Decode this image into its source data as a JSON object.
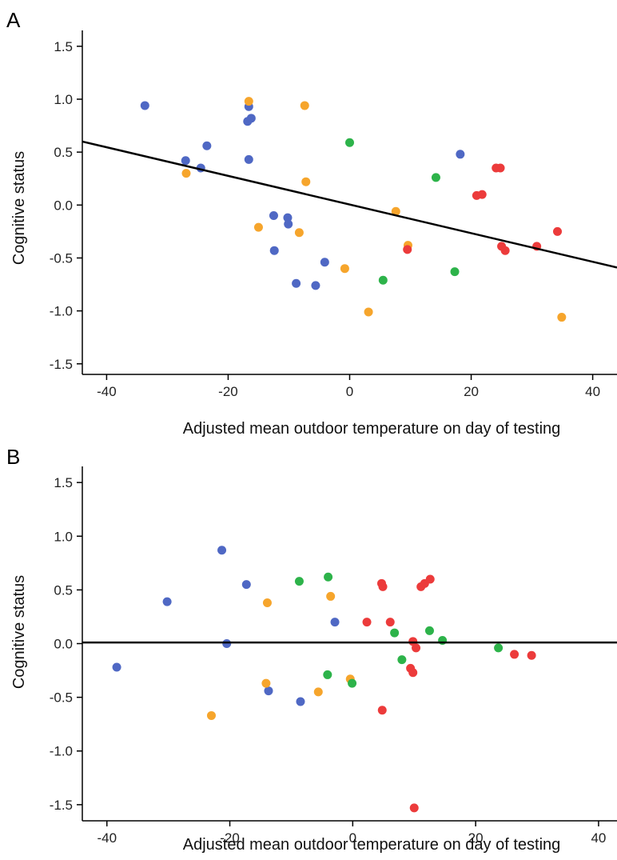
{
  "colors": {
    "blue": "#4f68c4",
    "orange": "#f6a52c",
    "green": "#2db34a",
    "red": "#ec3b3b"
  },
  "chart_data": [
    {
      "panel_label": "A",
      "type": "scatter",
      "title": "",
      "xlabel": "Adjusted mean outdoor temperature on day of testing",
      "ylabel": "Cognitive status",
      "xlim": [
        -44,
        44
      ],
      "ylim": [
        -1.6,
        1.65
      ],
      "xticks": [
        -40,
        -20,
        0,
        20,
        40
      ],
      "xtick_labels": [
        "-40",
        "-20",
        "0",
        "20",
        "40"
      ],
      "yticks": [
        1.5,
        1.0,
        0.5,
        0.0,
        -0.5,
        -1.0,
        -1.5
      ],
      "ytick_labels": [
        "1.5",
        "1.0",
        "0.5",
        "0.0",
        "-0.5",
        "-1.0",
        "-1.5"
      ],
      "fit_line": {
        "x": [
          -44,
          44
        ],
        "y": [
          0.6,
          -0.59
        ]
      },
      "series": [
        {
          "color": "blue",
          "points": [
            [
              -33.7,
              0.94
            ],
            [
              -16.6,
              0.93
            ],
            [
              -16.8,
              0.79
            ],
            [
              -16.2,
              0.82
            ],
            [
              -23.5,
              0.56
            ],
            [
              -27,
              0.42
            ],
            [
              -24.5,
              0.35
            ],
            [
              -16.6,
              0.43
            ],
            [
              -12.5,
              -0.1
            ],
            [
              -10.2,
              -0.12
            ],
            [
              -10.1,
              -0.18
            ],
            [
              -12.4,
              -0.43
            ],
            [
              -4.1,
              -0.54
            ],
            [
              -8.8,
              -0.74
            ],
            [
              -5.6,
              -0.76
            ],
            [
              18.2,
              0.48
            ]
          ]
        },
        {
          "color": "orange",
          "points": [
            [
              -16.6,
              0.98
            ],
            [
              -7.4,
              0.94
            ],
            [
              -26.9,
              0.3
            ],
            [
              -7.2,
              0.22
            ],
            [
              -15,
              -0.21
            ],
            [
              -8.3,
              -0.26
            ],
            [
              -0.8,
              -0.6
            ],
            [
              3.1,
              -1.01
            ],
            [
              7.6,
              -0.06
            ],
            [
              9.6,
              -0.38
            ],
            [
              34.9,
              -1.06
            ]
          ]
        },
        {
          "color": "green",
          "points": [
            [
              0,
              0.59
            ],
            [
              14.2,
              0.26
            ],
            [
              5.5,
              -0.71
            ],
            [
              17.3,
              -0.63
            ]
          ]
        },
        {
          "color": "red",
          "points": [
            [
              24.1,
              0.35
            ],
            [
              24.8,
              0.35
            ],
            [
              20.9,
              0.09
            ],
            [
              21.8,
              0.1
            ],
            [
              9.5,
              -0.42
            ],
            [
              25,
              -0.39
            ],
            [
              25.6,
              -0.43
            ],
            [
              30.8,
              -0.39
            ],
            [
              34.2,
              -0.25
            ]
          ]
        }
      ]
    },
    {
      "panel_label": "B",
      "type": "scatter",
      "title": "",
      "xlabel": "Adjusted mean outdoor temperature on day of testing",
      "ylabel": "Cognitive status",
      "xlim": [
        -44,
        43
      ],
      "ylim": [
        -1.65,
        1.65
      ],
      "xticks": [
        -40,
        -20,
        0,
        20,
        40
      ],
      "xtick_labels": [
        "-40",
        "-20",
        "0",
        "20",
        "40"
      ],
      "yticks": [
        1.5,
        1.0,
        0.5,
        0.0,
        -0.5,
        -1.0,
        -1.5
      ],
      "ytick_labels": [
        "1.5",
        "1.0",
        "0.5",
        "0.0",
        "-0.5",
        "-1.0",
        "-1.5"
      ],
      "fit_line": {
        "x": [
          -44,
          43
        ],
        "y": [
          0.01,
          0.01
        ]
      },
      "series": [
        {
          "color": "blue",
          "points": [
            [
              -21.3,
              0.87
            ],
            [
              -30.2,
              0.39
            ],
            [
              -17.3,
              0.55
            ],
            [
              -20.5,
              0.0
            ],
            [
              -2.9,
              0.2
            ],
            [
              -38.4,
              -0.22
            ],
            [
              -13.7,
              -0.44
            ],
            [
              -8.5,
              -0.54
            ]
          ]
        },
        {
          "color": "orange",
          "points": [
            [
              -3.6,
              0.44
            ],
            [
              -13.9,
              0.38
            ],
            [
              -14.1,
              -0.37
            ],
            [
              -5.6,
              -0.45
            ],
            [
              -0.4,
              -0.33
            ],
            [
              -23,
              -0.67
            ]
          ]
        },
        {
          "color": "green",
          "points": [
            [
              -8.7,
              0.58
            ],
            [
              -4,
              0.62
            ],
            [
              6.8,
              0.1
            ],
            [
              12.5,
              0.12
            ],
            [
              14.6,
              0.03
            ],
            [
              8,
              -0.15
            ],
            [
              -4.1,
              -0.29
            ],
            [
              -0.1,
              -0.37
            ],
            [
              23.7,
              -0.04
            ]
          ]
        },
        {
          "color": "red",
          "points": [
            [
              4.7,
              0.56
            ],
            [
              4.9,
              0.53
            ],
            [
              11.1,
              0.53
            ],
            [
              11.7,
              0.56
            ],
            [
              12.6,
              0.6
            ],
            [
              2.3,
              0.2
            ],
            [
              6.1,
              0.2
            ],
            [
              9.8,
              0.02
            ],
            [
              10.3,
              -0.04
            ],
            [
              9.4,
              -0.23
            ],
            [
              9.8,
              -0.27
            ],
            [
              4.8,
              -0.62
            ],
            [
              10,
              -1.53
            ],
            [
              26.3,
              -0.1
            ],
            [
              29.1,
              -0.11
            ]
          ]
        }
      ]
    }
  ]
}
